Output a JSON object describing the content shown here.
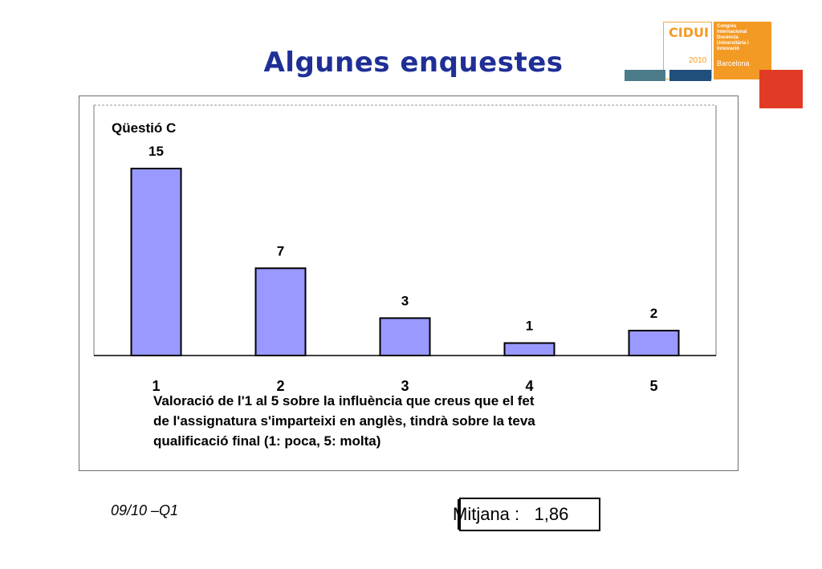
{
  "slide": {
    "title": "Algunes enquestes",
    "footer_left": "09/10 –Q1",
    "mean_label": "Mitjana :",
    "mean_value": "1,86"
  },
  "logo": {
    "name": "CIDUI",
    "year": "2010",
    "description": [
      "Congrés",
      "Internacional",
      "Docència",
      "Universitària i",
      "Innovació"
    ],
    "city": "Barcelona",
    "colors": {
      "orange": "#f39a25",
      "red": "#e23b25",
      "teal": "#4c7b8a",
      "navy": "#1f4f7a"
    }
  },
  "chart_data": {
    "type": "bar",
    "title": "Qüestió C",
    "categories": [
      "1",
      "2",
      "3",
      "4",
      "5"
    ],
    "values": [
      15,
      7,
      3,
      1,
      2
    ],
    "data_labels": [
      "15",
      "7",
      "3",
      "1",
      "2"
    ],
    "xlabel_lines": [
      "Valoració de l'1 al 5 sobre la influència que creus que el fet",
      "de l'assignatura s'imparteixi en anglès, tindrà sobre la teva",
      "qualificació final (1: poca, 5: molta)"
    ],
    "ylim": [
      0,
      15
    ],
    "grid": false,
    "bar_color": "#9999ff"
  }
}
